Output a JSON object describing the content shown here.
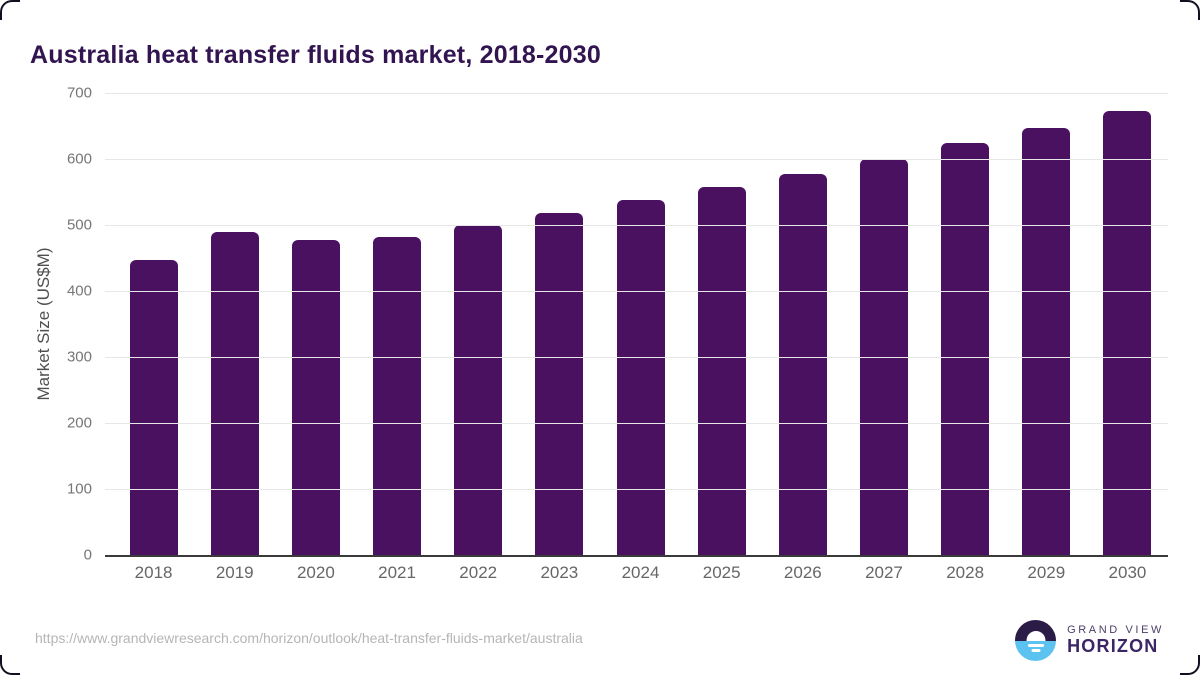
{
  "title": "Australia heat transfer fluids market, 2018-2030",
  "source_url": "https://www.grandviewresearch.com/horizon/outlook/heat-transfer-fluids-market/australia",
  "logo": {
    "line1": "GRAND VIEW",
    "line2": "HORIZON",
    "icon": "sunrise-horizon-icon",
    "icon_top_color": "#2b1b47",
    "icon_bottom_color": "#5cc3f0"
  },
  "colors": {
    "bar": "#4a1161",
    "title_text": "#321450",
    "y_axis_title": "#4f4f4f",
    "y_tick_label": "#767676",
    "x_tick_label": "#666666",
    "gridline": "#e7e7e7",
    "axis_line": "#3a3a3a",
    "source_url_text": "#b5b5b5"
  },
  "chart_data": {
    "type": "bar",
    "title": "Australia heat transfer fluids market, 2018-2030",
    "categories": [
      "2018",
      "2019",
      "2020",
      "2021",
      "2022",
      "2023",
      "2024",
      "2025",
      "2026",
      "2027",
      "2028",
      "2029",
      "2030"
    ],
    "values": [
      447,
      490,
      478,
      482,
      500,
      518,
      538,
      557,
      578,
      600,
      624,
      647,
      673
    ],
    "xlabel": "",
    "ylabel": "Market Size (US$M)",
    "ylim": [
      0,
      700
    ],
    "yticks": [
      0,
      100,
      200,
      300,
      400,
      500,
      600,
      700
    ],
    "grid": "horizontal",
    "legend": false,
    "bar_color": "#4a1161"
  }
}
